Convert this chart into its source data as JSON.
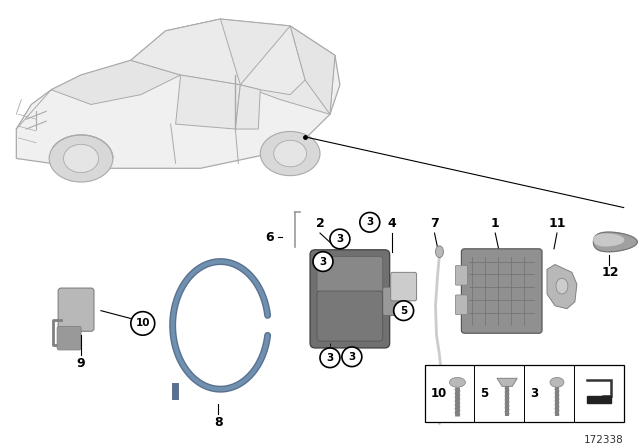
{
  "bg_color": "#ffffff",
  "part_number": "172338",
  "fig_width": 6.4,
  "fig_height": 4.48,
  "dpi": 100,
  "car_body_color": "#f0f0f0",
  "car_line_color": "#aaaaaa",
  "part_gray_dark": "#808080",
  "part_gray_mid": "#999999",
  "part_gray_light": "#cccccc",
  "part_silver": "#b8b8b8",
  "handle_color": "#909090",
  "wire_color": "#6888aa",
  "black": "#000000",
  "box_label_items": [
    {
      "num": "10",
      "cell": 0
    },
    {
      "num": "5",
      "cell": 1
    },
    {
      "num": "3",
      "cell": 2
    },
    {
      "num": "",
      "cell": 3
    }
  ]
}
